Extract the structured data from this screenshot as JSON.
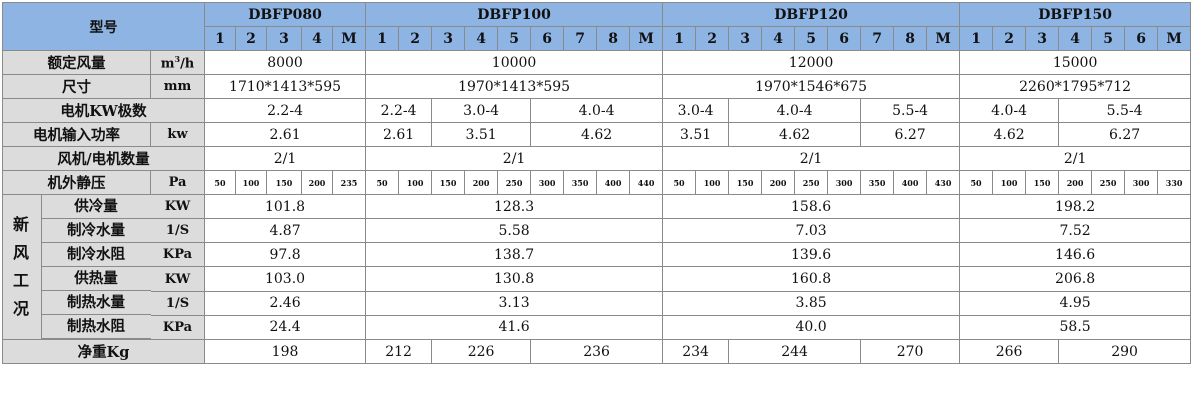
{
  "header": {
    "model_label": "型号",
    "models": [
      "DBFP080",
      "DBFP100",
      "DBFP120",
      "DBFP150"
    ],
    "sub": [
      [
        "1",
        "2",
        "3",
        "4",
        "M"
      ],
      [
        "1",
        "2",
        "3",
        "4",
        "5",
        "6",
        "7",
        "8",
        "M"
      ],
      [
        "1",
        "2",
        "3",
        "4",
        "5",
        "6",
        "7",
        "8",
        "M"
      ],
      [
        "1",
        "2",
        "3",
        "4",
        "5",
        "6",
        "M"
      ]
    ]
  },
  "rows": {
    "airflow": {
      "label": "额定风量",
      "unit_base": "m",
      "unit_sup": "3",
      "unit_tail": "/h",
      "values": [
        "8000",
        "10000",
        "12000",
        "15000"
      ]
    },
    "size": {
      "label": "尺寸",
      "unit": "mm",
      "values": [
        "1710*1413*595",
        "1970*1413*595",
        "1970*1546*675",
        "2260*1795*712"
      ]
    },
    "poles": {
      "label": "电机KW极数",
      "values": [
        "2.2-4",
        "2.2-4",
        "3.0-4",
        "4.0-4",
        "3.0-4",
        "4.0-4",
        "5.5-4",
        "4.0-4",
        "5.5-4"
      ]
    },
    "power": {
      "label": "电机输入功率",
      "unit": "kw",
      "values": [
        "2.61",
        "2.61",
        "3.51",
        "4.62",
        "3.51",
        "4.62",
        "6.27",
        "4.62",
        "6.27"
      ]
    },
    "fan_count": {
      "label": "风机/电机数量",
      "values": [
        "2/1",
        "2/1",
        "2/1",
        "2/1"
      ]
    },
    "static": {
      "label": "机外静压",
      "unit": "Pa",
      "values": [
        [
          "50",
          "100",
          "150",
          "200",
          "235"
        ],
        [
          "50",
          "100",
          "150",
          "200",
          "250",
          "300",
          "350",
          "400",
          "440"
        ],
        [
          "50",
          "100",
          "150",
          "200",
          "250",
          "300",
          "350",
          "400",
          "430"
        ],
        [
          "50",
          "100",
          "150",
          "200",
          "250",
          "300",
          "330"
        ]
      ]
    }
  },
  "fresh": {
    "side_chars": [
      "新",
      "风",
      "工",
      "况"
    ],
    "rows": [
      {
        "label": "供冷量",
        "unit": "KW",
        "values": [
          "101.8",
          "128.3",
          "158.6",
          "198.2"
        ]
      },
      {
        "label": "制冷水量",
        "unit": "1/S",
        "values": [
          "4.87",
          "5.58",
          "7.03",
          "7.52"
        ]
      },
      {
        "label": "制冷水阻",
        "unit": "KPa",
        "values": [
          "97.8",
          "138.7",
          "139.6",
          "146.6"
        ]
      },
      {
        "label": "供热量",
        "unit": "KW",
        "values": [
          "103.0",
          "130.8",
          "160.8",
          "206.8"
        ]
      },
      {
        "label": "制热水量",
        "unit": "1/S",
        "values": [
          "2.46",
          "3.13",
          "3.85",
          "4.95"
        ]
      },
      {
        "label": "制热水阻",
        "unit": "KPa",
        "values": [
          "24.4",
          "41.6",
          "40.0",
          "58.5"
        ]
      }
    ]
  },
  "weight": {
    "label": "净重Kg",
    "values": [
      "198",
      "212",
      "226",
      "236",
      "234",
      "244",
      "270",
      "266",
      "290"
    ]
  }
}
